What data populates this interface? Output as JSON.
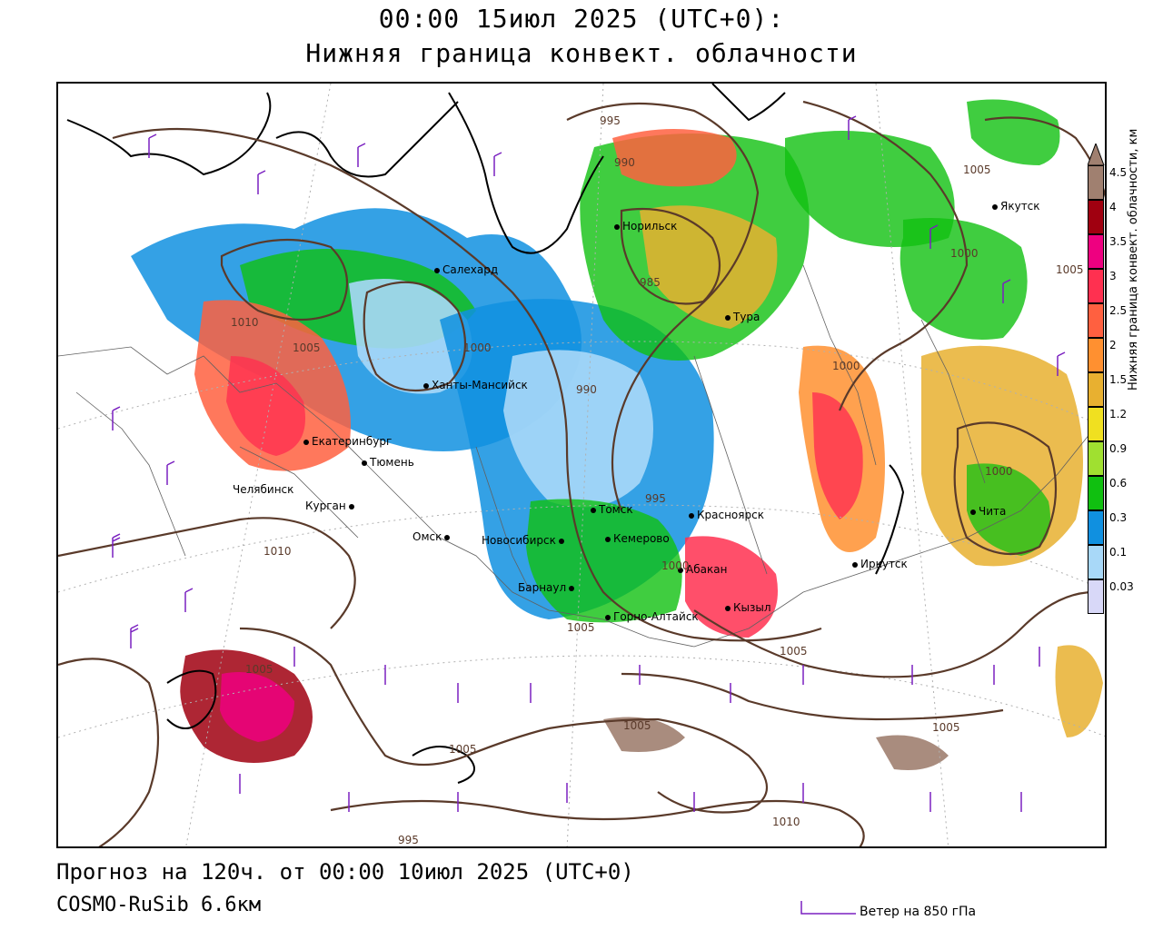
{
  "header": {
    "line1": "00:00 15июл 2025 (UTC+0):",
    "line2": "Нижняя граница конвект. облачности"
  },
  "footer": {
    "forecast": "Прогноз на 120ч. от 00:00 10июл 2025 (UTC+0)",
    "model": "COSMO-RuSib 6.6км",
    "wind_label": "Ветер на 850 гПа"
  },
  "legend": {
    "title": "Нижняя граница конвект. облачности, км",
    "levels": [
      {
        "label": "4.5",
        "color": "#a08070"
      },
      {
        "label": "4",
        "color": "#a00010"
      },
      {
        "label": "3.5",
        "color": "#ee0080"
      },
      {
        "label": "3",
        "color": "#ff3050"
      },
      {
        "label": "2.5",
        "color": "#ff6040"
      },
      {
        "label": "2",
        "color": "#ff9030"
      },
      {
        "label": "1.5",
        "color": "#e8b030"
      },
      {
        "label": "1.2",
        "color": "#f0e020"
      },
      {
        "label": "0.9",
        "color": "#a0e030"
      },
      {
        "label": "0.6",
        "color": "#10c010"
      },
      {
        "label": "0.3",
        "color": "#1090e0"
      },
      {
        "label": "0.1",
        "color": "#a8d8f8"
      },
      {
        "label": "0.03",
        "color": "#d8d8f8"
      }
    ]
  },
  "cities": [
    {
      "name": "Якутск"
    },
    {
      "name": "Норильск"
    },
    {
      "name": "Салехард"
    },
    {
      "name": "Тура"
    },
    {
      "name": "Ханты-Мансийск"
    },
    {
      "name": "Екатеринбург"
    },
    {
      "name": "Тюмень"
    },
    {
      "name": "Челябинск"
    },
    {
      "name": "Курган"
    },
    {
      "name": "Омск"
    },
    {
      "name": "Новосибирск"
    },
    {
      "name": "Томск"
    },
    {
      "name": "Кемерово"
    },
    {
      "name": "Красноярск"
    },
    {
      "name": "Абакан"
    },
    {
      "name": "Барнаул"
    },
    {
      "name": "Горно-Алтайск"
    },
    {
      "name": "Кызыл"
    },
    {
      "name": "Иркутск"
    },
    {
      "name": "Чита"
    }
  ],
  "isobar_labels": [
    "995",
    "990",
    "985",
    "1005",
    "1000",
    "1005",
    "1010",
    "1005",
    "1000",
    "990",
    "995",
    "1000",
    "1000",
    "1000",
    "1010",
    "1005",
    "1005",
    "1005",
    "1005",
    "1005",
    "1005",
    "1010",
    "995"
  ],
  "colors": {
    "isobar": "#5a3a2a",
    "coast": "#000000",
    "wind": "#7a20c0",
    "border": "#606060"
  }
}
